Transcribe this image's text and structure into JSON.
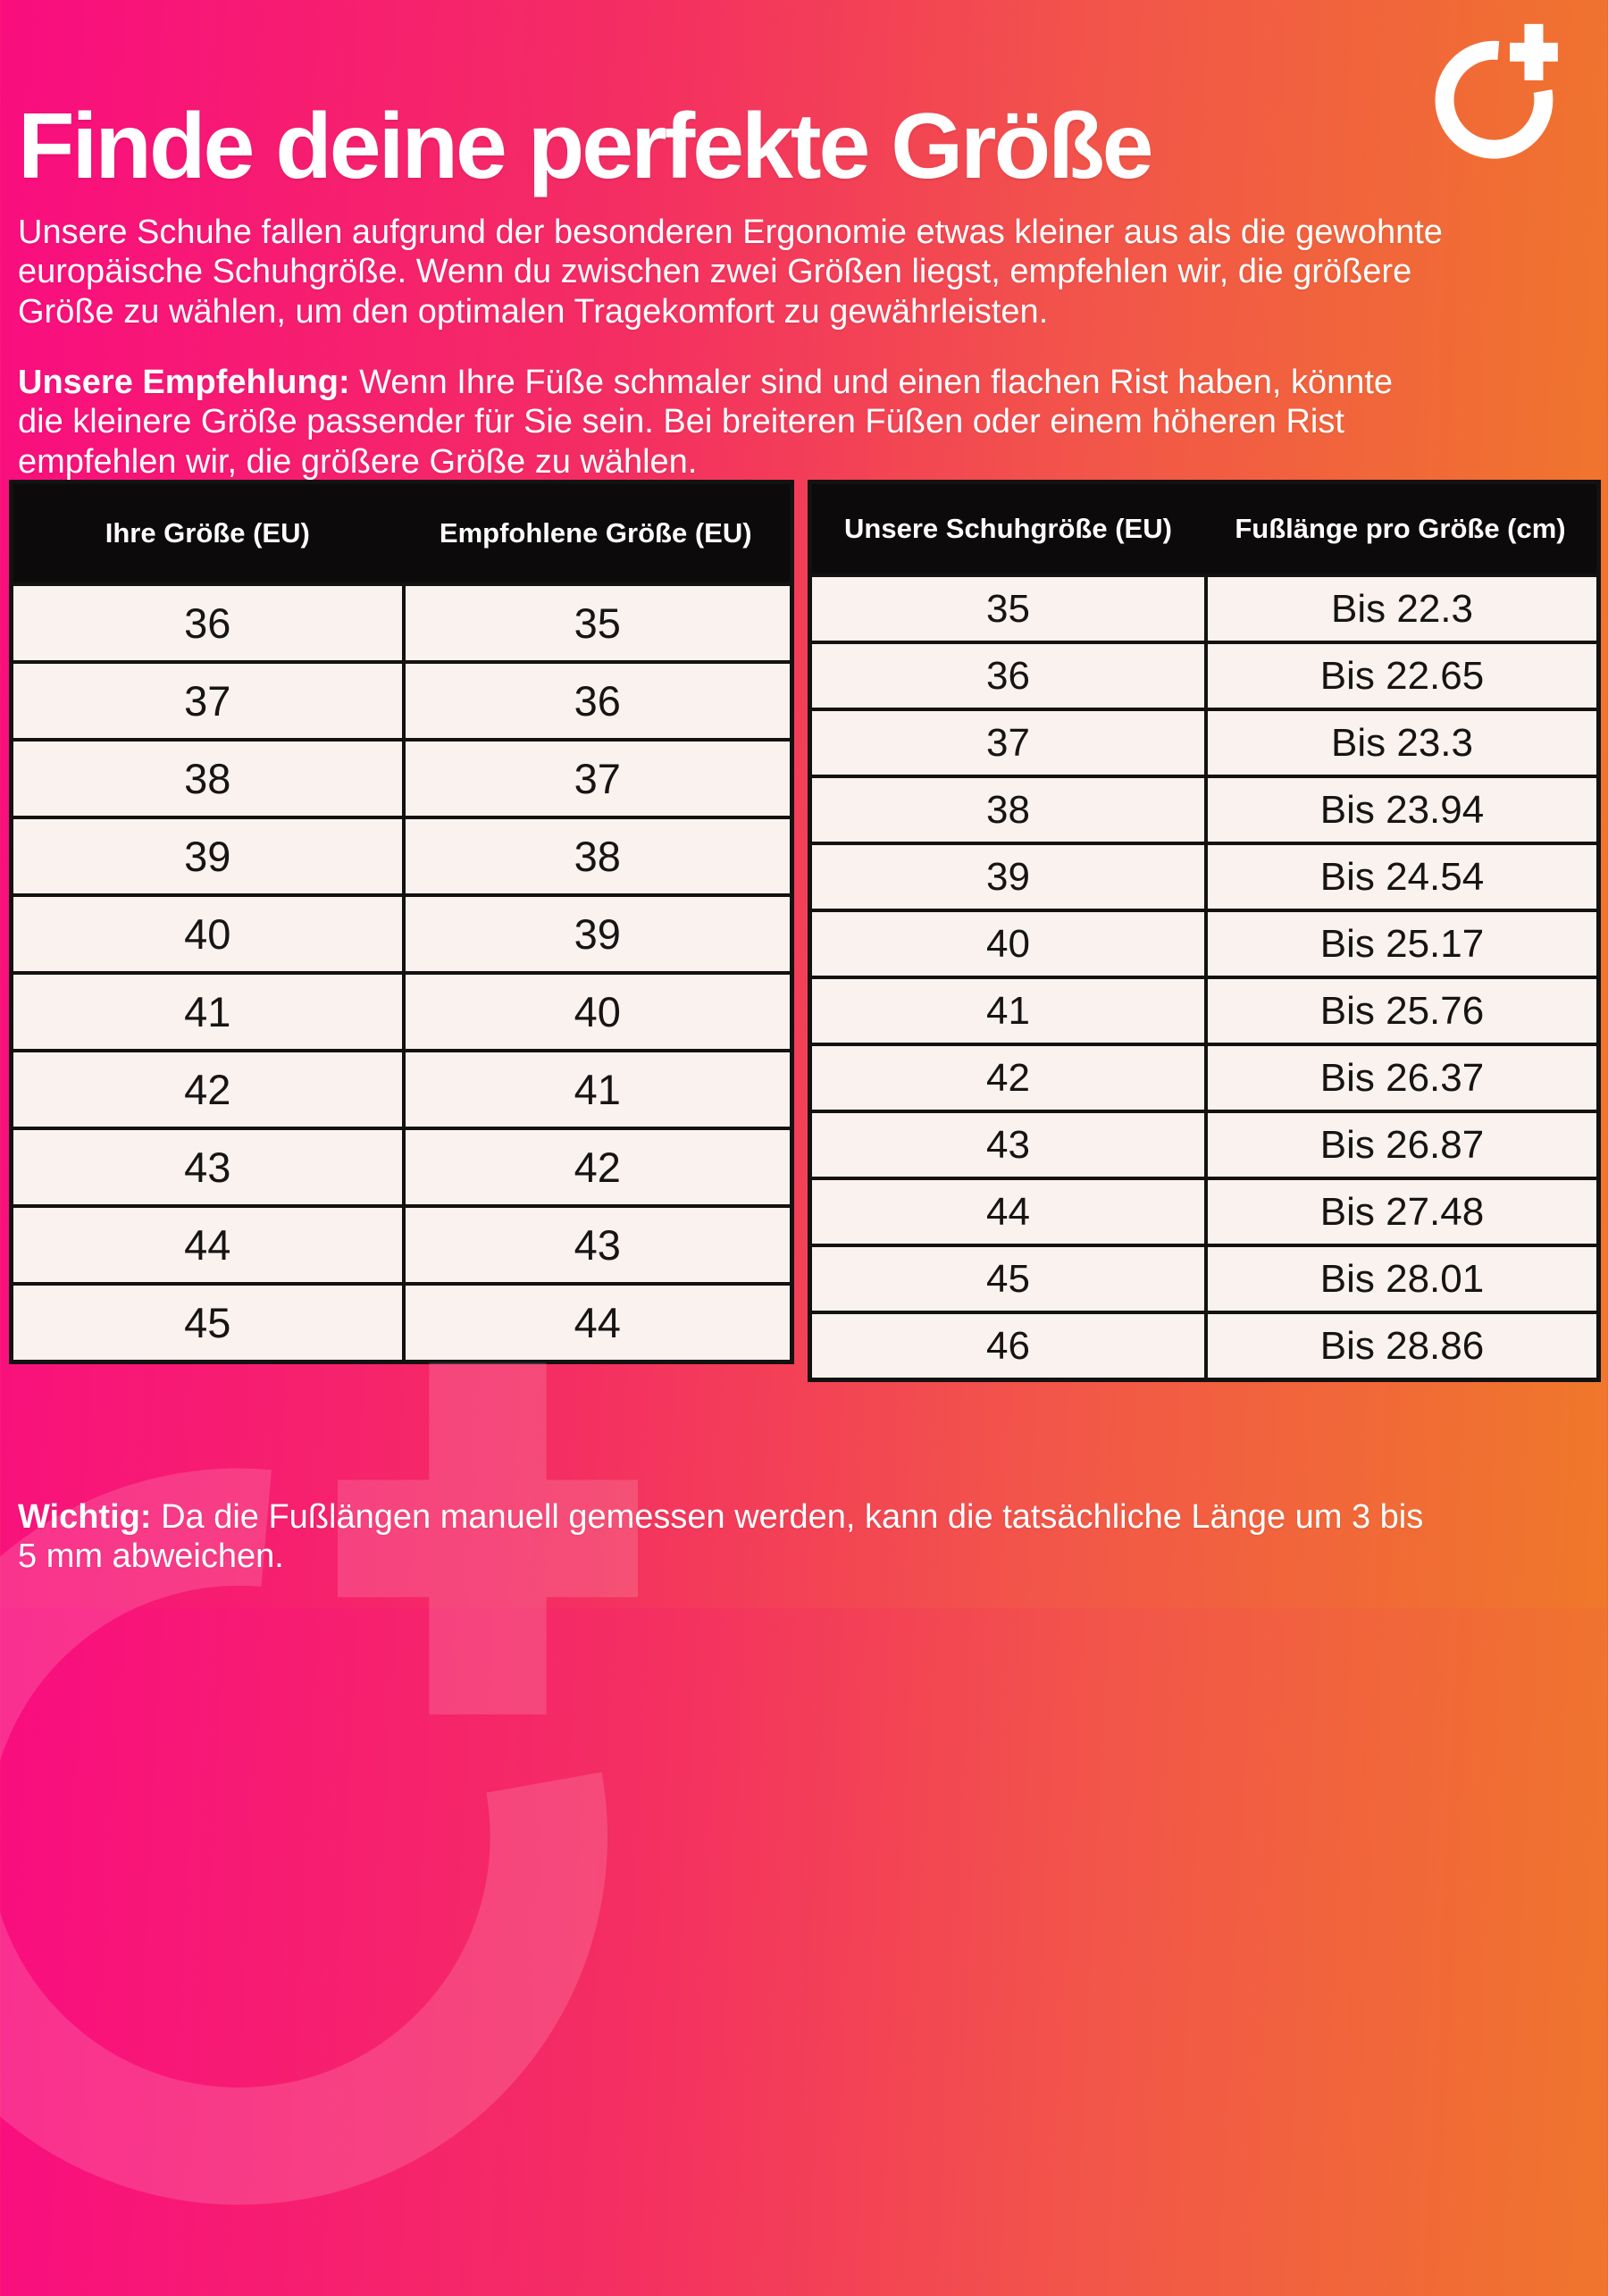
{
  "header": {
    "title": "Finde deine perfekte Größe"
  },
  "intro": "Unsere Schuhe fallen aufgrund der besonderen Ergonomie etwas kleiner aus als die gewohnte europäische Schuhgröße. Wenn du zwischen zwei Größen liegst, empfehlen wir, die größere Größe zu wählen, um den optimalen Tragekomfort zu gewährleisten.",
  "recommendation": {
    "label": "Unsere Empfehlung:",
    "text": " Wenn Ihre Füße schmaler sind und einen flachen Rist haben, könnte die kleinere Größe passender für Sie sein. Bei breiteren Füßen oder einem höheren Rist empfehlen wir, die größere Größe zu wählen."
  },
  "note": {
    "label": "Wichtig:",
    "text": " Da die Fußlängen manuell gemessen werden, kann die tatsächliche Länge um 3 bis 5 mm abweichen."
  },
  "size_table": {
    "headers": [
      "Ihre Größe (EU)",
      "Empfohlene Größe (EU)"
    ],
    "rows": [
      [
        "36",
        "35"
      ],
      [
        "37",
        "36"
      ],
      [
        "38",
        "37"
      ],
      [
        "39",
        "38"
      ],
      [
        "40",
        "39"
      ],
      [
        "41",
        "40"
      ],
      [
        "42",
        "41"
      ],
      [
        "43",
        "42"
      ],
      [
        "44",
        "43"
      ],
      [
        "45",
        "44"
      ]
    ]
  },
  "length_table": {
    "headers": [
      "Unsere Schuhgröße (EU)",
      "Fußlänge pro Größe (cm)"
    ],
    "rows": [
      [
        "35",
        "Bis 22.3"
      ],
      [
        "36",
        "Bis 22.65"
      ],
      [
        "37",
        "Bis 23.3"
      ],
      [
        "38",
        "Bis 23.94"
      ],
      [
        "39",
        "Bis 24.54"
      ],
      [
        "40",
        "Bis 25.17"
      ],
      [
        "41",
        "Bis 25.76"
      ],
      [
        "42",
        "Bis 26.37"
      ],
      [
        "43",
        "Bis 26.87"
      ],
      [
        "44",
        "Bis 27.48"
      ],
      [
        "45",
        "Bis 28.01"
      ],
      [
        "46",
        "Bis 28.86"
      ]
    ]
  },
  "colors": {
    "gradient_start": "#f90d7f",
    "gradient_mid": "#f42e62",
    "gradient_end": "#f0782a",
    "table_header_bg": "#0c0a0a",
    "table_cell_bg": "#faf2ee",
    "table_border": "#141111",
    "text": "#ffffff"
  }
}
